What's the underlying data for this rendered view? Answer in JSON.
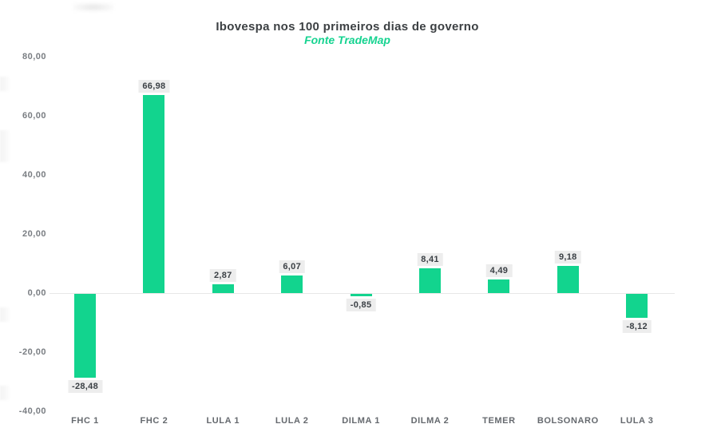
{
  "page": {
    "background": "#ffffff"
  },
  "chart_data": {
    "type": "bar",
    "title": "Ibovespa nos 100 primeiros dias de governo",
    "subtitle": "Fonte TradeMap",
    "categories": [
      "FHC 1",
      "FHC 2",
      "LULA 1",
      "LULA 2",
      "DILMA 1",
      "DILMA 2",
      "TEMER",
      "BOLSONARO",
      "LULA 3"
    ],
    "values": [
      -28.48,
      66.98,
      2.87,
      6.07,
      -0.85,
      8.41,
      4.49,
      9.18,
      -8.12
    ],
    "value_labels": [
      "-28,48",
      "66,98",
      "2,87",
      "6,07",
      "-0,85",
      "8,41",
      "4,49",
      "9,18",
      "-8,12"
    ],
    "xlabel": "",
    "ylabel": "",
    "ylim": [
      -40,
      80
    ],
    "yticks": [
      80,
      60,
      40,
      20,
      0,
      -20,
      -40
    ],
    "ytick_labels": [
      "80,00",
      "60,00",
      "40,00",
      "20,00",
      "0,00",
      "-20,00",
      "-40,00"
    ],
    "grid": "zero-line-only",
    "legend": "none",
    "bar_color": "#12d48e",
    "value_label_bg": "#ededed",
    "value_label_color": "#3b4045",
    "axis_tick_color": "#797d82",
    "category_label_color": "#65696e",
    "title_color": "#3c4043",
    "subtitle_color": "#15d390",
    "zero_line_color": "#e7e7e7"
  }
}
